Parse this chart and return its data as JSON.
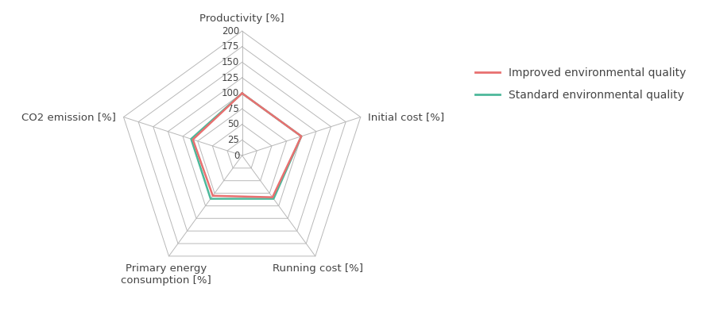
{
  "categories": [
    "Productivity [%]",
    "Initial cost [%]",
    "Running cost [%]",
    "Primary energy\nconsumption [%]",
    "CO2 emission [%]"
  ],
  "improved": [
    100,
    100,
    83,
    80,
    83
  ],
  "standard": [
    100,
    100,
    86,
    86,
    86
  ],
  "grid_levels": [
    0,
    25,
    50,
    75,
    100,
    125,
    150,
    175,
    200
  ],
  "max_val": 200,
  "improved_color": "#e87070",
  "standard_color": "#4db89a",
  "grid_color": "#b8b8b8",
  "improved_label": "Improved environmental quality",
  "standard_label": "Standard environmental quality",
  "legend_fontsize": 10,
  "label_fontsize": 9.5,
  "tick_fontsize": 8.5,
  "lw_data": 1.8,
  "lw_grid": 0.7,
  "fig_width": 8.96,
  "fig_height": 3.92
}
